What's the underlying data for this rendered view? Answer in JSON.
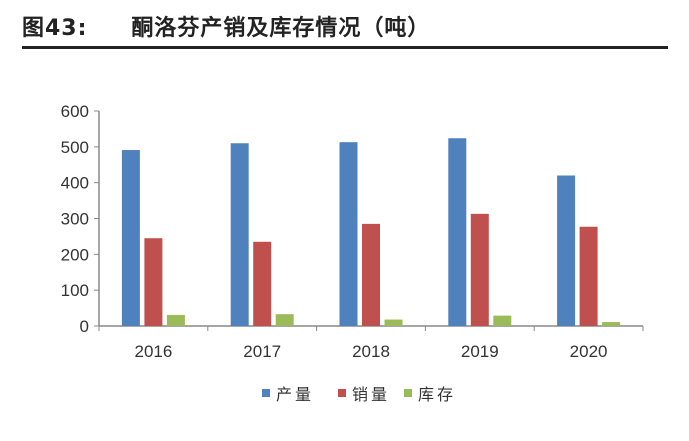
{
  "figure": {
    "label": "图43:",
    "title": "酮洛芬产销及库存情况（吨）"
  },
  "chart_data": {
    "type": "bar",
    "categories": [
      "2016",
      "2017",
      "2018",
      "2019",
      "2020"
    ],
    "series": [
      {
        "name": "产量",
        "color": "#4F81BD",
        "values": [
          491,
          510,
          513,
          524,
          420
        ]
      },
      {
        "name": "销量",
        "color": "#C0504D",
        "values": [
          245,
          235,
          285,
          313,
          277
        ]
      },
      {
        "name": "库存",
        "color": "#9BBB59",
        "values": [
          31,
          33,
          18,
          29,
          11
        ]
      }
    ],
    "yticks": [
      "0",
      "100",
      "200",
      "300",
      "400",
      "500",
      "600"
    ],
    "ylim": [
      0,
      600
    ],
    "grid": false,
    "legend": "bottom"
  }
}
